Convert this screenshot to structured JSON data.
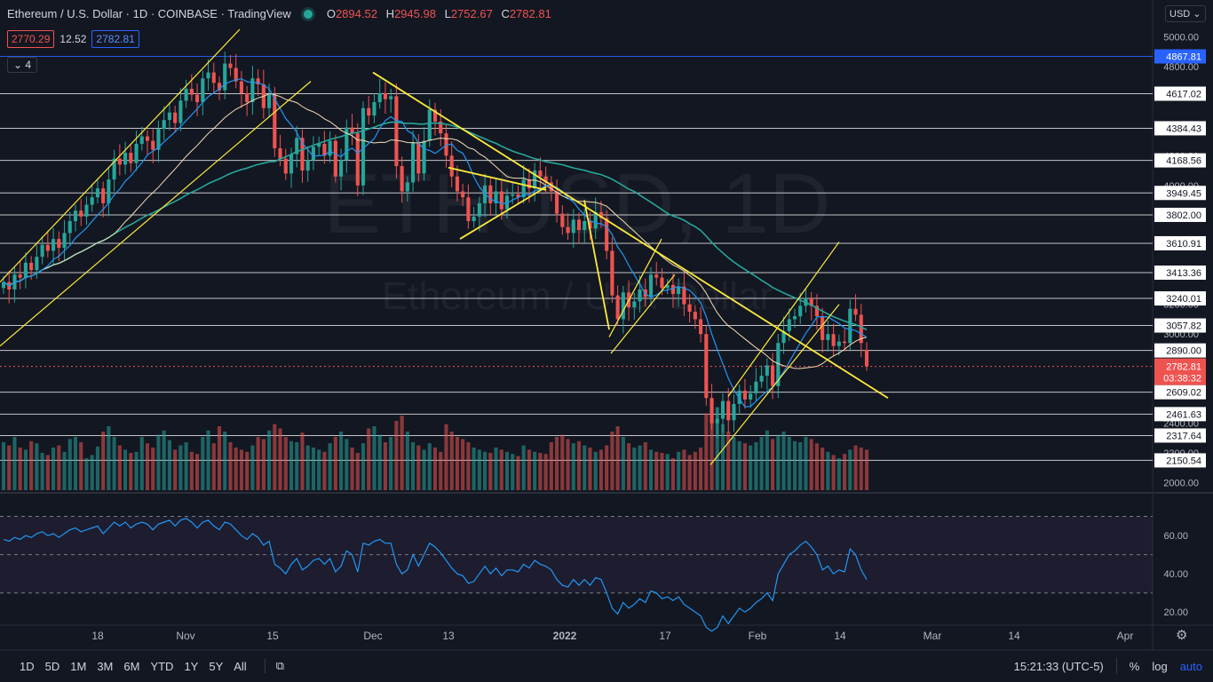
{
  "header": {
    "symbol_title": "Ethereum / U.S. Dollar · 1D · COINBASE · TradingView",
    "open_label": "O",
    "open": "2894.52",
    "high_label": "H",
    "high": "2945.98",
    "low_label": "L",
    "low": "2752.67",
    "close_label": "C",
    "close": "2782.81"
  },
  "quotes": {
    "bid": "2770.29",
    "spread": "12.52",
    "ask": "2782.81"
  },
  "indicator_toggle": "4",
  "currency": "USD",
  "watermark": {
    "big": "ETHUSD, 1D",
    "sub": "Ethereum / U.S. Dollar"
  },
  "price_axis": {
    "ticks": [
      "5000.00",
      "4800.00",
      "4600.00",
      "4400.00",
      "4200.00",
      "4000.00",
      "3800.00",
      "3600.00",
      "3400.00",
      "3200.00",
      "3000.00",
      "2800.00",
      "2600.00",
      "2400.00",
      "2200.00",
      "2000.00"
    ],
    "hline_labels": [
      "4867.81",
      "4617.02",
      "4384.43",
      "4168.56",
      "3949.45",
      "3802.00",
      "3610.91",
      "3413.36",
      "3240.01",
      "3057.82",
      "2890.00",
      "2609.02",
      "2461.63",
      "2317.64",
      "2150.54"
    ],
    "current_price": "2782.81",
    "countdown": "03:38:32"
  },
  "rsi_axis": {
    "ticks": [
      "60.00",
      "40.00",
      "20.00"
    ]
  },
  "time_axis": {
    "labels": [
      "18",
      "Nov",
      "15",
      "Dec",
      "13",
      "2022",
      "17",
      "Feb",
      "14",
      "Mar",
      "14",
      "Apr"
    ]
  },
  "colors": {
    "up": "#26a69a",
    "down": "#ef5350",
    "trend": "#ffeb3b",
    "ma_slow": "#26a69a",
    "ma_fast": "#2196f3",
    "ma_mid": "#f5deb3",
    "rsi": "#2196f3",
    "bg": "#131722"
  },
  "bottom_bar": {
    "timeframes": [
      "1D",
      "5D",
      "1M",
      "3M",
      "6M",
      "YTD",
      "1Y",
      "5Y",
      "All"
    ],
    "range_icon": "calendar-range-icon",
    "clock": "15:21:33 (UTC-5)",
    "percent": "%",
    "log": "log",
    "auto": "auto"
  },
  "chart_data": {
    "type": "candlestick",
    "title": "Ethereum / U.S. Dollar · 1D · COINBASE",
    "price_range": [
      1950,
      5080
    ],
    "rsi_range": [
      15,
      80
    ],
    "horizontal_levels": [
      4867.81,
      4617.02,
      4384.43,
      4168.56,
      3949.45,
      3802.0,
      3610.91,
      3413.36,
      3240.01,
      3057.82,
      2890.0,
      2609.02,
      2461.63,
      2317.64,
      2150.54
    ],
    "last": {
      "open": 2894.52,
      "high": 2945.98,
      "low": 2752.67,
      "close": 2782.81
    },
    "closes": [
      3350,
      3300,
      3400,
      3380,
      3480,
      3430,
      3520,
      3600,
      3560,
      3640,
      3580,
      3680,
      3760,
      3830,
      3790,
      3870,
      3920,
      3980,
      3880,
      4040,
      4180,
      4140,
      4220,
      4150,
      4280,
      4330,
      4300,
      4240,
      4380,
      4440,
      4490,
      4420,
      4570,
      4650,
      4610,
      4560,
      4720,
      4760,
      4690,
      4640,
      4820,
      4790,
      4700,
      4620,
      4560,
      4720,
      4680,
      4520,
      4610,
      4250,
      4180,
      4080,
      4210,
      4320,
      4100,
      4170,
      4260,
      4280,
      4200,
      4300,
      4060,
      4170,
      4390,
      4350,
      4000,
      4520,
      4470,
      4560,
      4620,
      4580,
      4600,
      4130,
      3960,
      4020,
      4290,
      4080,
      4300,
      4510,
      4430,
      4350,
      4200,
      4060,
      3960,
      3920,
      3760,
      3790,
      3880,
      4000,
      3880,
      3960,
      3840,
      3930,
      3940,
      3920,
      4040,
      3980,
      4100,
      4060,
      4020,
      3960,
      3810,
      3720,
      3680,
      3770,
      3700,
      3760,
      3710,
      3820,
      3780,
      3560,
      3260,
      3100,
      3280,
      3180,
      3220,
      3300,
      3250,
      3400,
      3380,
      3310,
      3330,
      3270,
      3320,
      3200,
      3150,
      3100,
      3000,
      2570,
      2400,
      2430,
      2550,
      2420,
      2530,
      2620,
      2560,
      2600,
      2680,
      2720,
      2790,
      2650,
      2940,
      3020,
      3100,
      3120,
      3190,
      3240,
      3190,
      3120,
      2960,
      3000,
      2920,
      2950,
      2940,
      3170,
      3130,
      2940,
      2782.81
    ],
    "volumes": [
      0.45,
      0.42,
      0.5,
      0.4,
      0.38,
      0.46,
      0.44,
      0.35,
      0.33,
      0.4,
      0.42,
      0.36,
      0.48,
      0.5,
      0.45,
      0.3,
      0.33,
      0.41,
      0.55,
      0.6,
      0.5,
      0.42,
      0.38,
      0.35,
      0.36,
      0.5,
      0.44,
      0.4,
      0.52,
      0.56,
      0.47,
      0.38,
      0.42,
      0.45,
      0.36,
      0.34,
      0.5,
      0.56,
      0.44,
      0.6,
      0.55,
      0.45,
      0.4,
      0.38,
      0.36,
      0.42,
      0.5,
      0.48,
      0.56,
      0.62,
      0.58,
      0.5,
      0.46,
      0.45,
      0.54,
      0.42,
      0.4,
      0.38,
      0.36,
      0.44,
      0.5,
      0.55,
      0.48,
      0.4,
      0.35,
      0.44,
      0.58,
      0.6,
      0.52,
      0.45,
      0.5,
      0.65,
      0.7,
      0.55,
      0.45,
      0.42,
      0.38,
      0.44,
      0.4,
      0.36,
      0.62,
      0.55,
      0.5,
      0.48,
      0.45,
      0.4,
      0.38,
      0.36,
      0.35,
      0.4,
      0.38,
      0.36,
      0.34,
      0.32,
      0.42,
      0.38,
      0.36,
      0.35,
      0.34,
      0.45,
      0.5,
      0.52,
      0.48,
      0.44,
      0.46,
      0.42,
      0.4,
      0.36,
      0.38,
      0.42,
      0.55,
      0.6,
      0.5,
      0.44,
      0.4,
      0.42,
      0.45,
      0.38,
      0.36,
      0.35,
      0.34,
      0.3,
      0.36,
      0.38,
      0.33,
      0.36,
      0.4,
      0.72,
      0.85,
      0.78,
      0.62,
      0.55,
      0.5,
      0.46,
      0.44,
      0.42,
      0.45,
      0.5,
      0.56,
      0.48,
      0.52,
      0.55,
      0.5,
      0.46,
      0.45,
      0.5,
      0.48,
      0.44,
      0.4,
      0.36,
      0.33,
      0.3,
      0.34,
      0.38,
      0.42,
      0.4,
      0.38
    ],
    "rsi": [
      58,
      57,
      59,
      58,
      60,
      59,
      61,
      62,
      60,
      61,
      59,
      61,
      63,
      64,
      62,
      63,
      64,
      65,
      61,
      64,
      67,
      65,
      67,
      64,
      66,
      67,
      66,
      63,
      66,
      67,
      68,
      65,
      68,
      69,
      67,
      64,
      67,
      68,
      65,
      63,
      67,
      66,
      63,
      60,
      58,
      61,
      59,
      55,
      57,
      45,
      43,
      40,
      45,
      48,
      42,
      44,
      47,
      48,
      45,
      48,
      41,
      44,
      52,
      50,
      41,
      56,
      55,
      57,
      58,
      56,
      56,
      45,
      40,
      42,
      50,
      44,
      50,
      56,
      54,
      51,
      47,
      43,
      40,
      39,
      35,
      36,
      40,
      44,
      40,
      43,
      39,
      42,
      42,
      41,
      45,
      43,
      47,
      45,
      44,
      42,
      37,
      34,
      33,
      37,
      34,
      37,
      34,
      38,
      37,
      30,
      22,
      19,
      25,
      22,
      24,
      27,
      25,
      31,
      30,
      27,
      28,
      26,
      28,
      24,
      22,
      20,
      18,
      12,
      10,
      12,
      18,
      14,
      18,
      22,
      20,
      22,
      25,
      27,
      30,
      26,
      40,
      45,
      50,
      52,
      55,
      57,
      54,
      50,
      42,
      44,
      40,
      42,
      41,
      53,
      50,
      42,
      37
    ]
  }
}
